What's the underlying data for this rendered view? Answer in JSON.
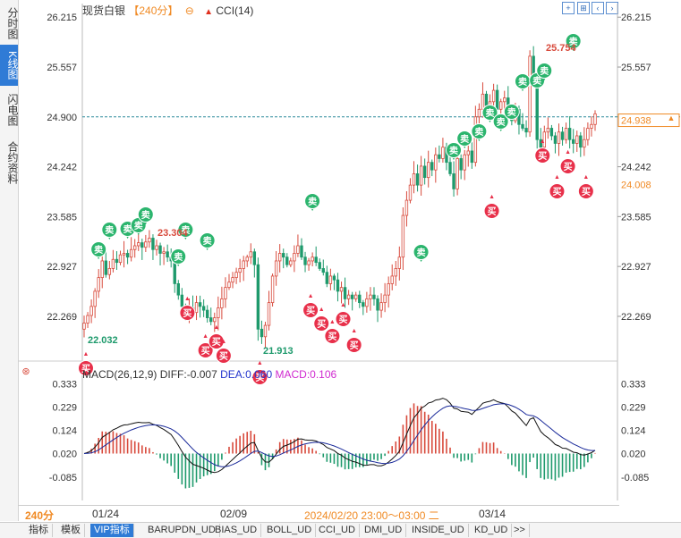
{
  "sidebar": {
    "tabs": [
      "分时图",
      "K线图",
      "闪电图",
      "合约资料"
    ],
    "active": 1
  },
  "header": {
    "title": "现货白银",
    "period": "【240分】",
    "indicator": "CCI(14)"
  },
  "toolbar_icons": [
    "zoom-out-icon",
    "zoom-in-icon",
    "scroll-left-icon",
    "scroll-right-icon",
    "zoom-reset-icon",
    "crosshair-icon"
  ],
  "price_labels": {
    "last": "24.938",
    "cursor": "24.008",
    "covered": "24.900"
  },
  "markers": {
    "buy": "买",
    "sell": "卖"
  },
  "macd_header": {
    "label": "MACD(26,12,9)",
    "diff": "DIFF:-0.007",
    "dea": "DEA:0.060",
    "macd": "MACD:0.106"
  },
  "bottom_axis": {
    "period": "240分",
    "date1": "01/24",
    "date2": "02/09",
    "cursor_time": "2024/02/20 23:00～03:00 二",
    "date3": "03/14"
  },
  "bottom_tabs": [
    "指标",
    "模板",
    "VIP指标",
    "BARUPDN_UD",
    "BIAS_UD",
    "BOLL_UD",
    "CCI_UD",
    "DMI_UD",
    "INSIDE_UD",
    "KD_UD",
    ">>"
  ],
  "active_bottom_tab": 2,
  "colors": {
    "up": "#d84a3c",
    "down": "#1e9a6c",
    "buy": "#e8304a",
    "sell": "#2cb56e",
    "diff": "#111111",
    "dea": "#1a2a9a",
    "dashed": "#2a8a9a",
    "accent": "#f08a24"
  },
  "chart_data": [
    {
      "type": "candlestick",
      "title": "现货白银",
      "y_ticks": [
        26.215,
        25.557,
        24.9,
        24.242,
        23.585,
        22.927,
        22.269
      ],
      "ylim": [
        21.75,
        26.3
      ],
      "x_labels": [
        "01/24",
        "02/09",
        "03/14"
      ],
      "annotations": [
        {
          "label": "22.032",
          "value": 22.032,
          "kind": "low"
        },
        {
          "label": "23.304",
          "value": 23.304,
          "kind": "high"
        },
        {
          "label": "21.913",
          "value": 21.913,
          "kind": "low"
        },
        {
          "label": "25.754",
          "value": 25.754,
          "kind": "high"
        }
      ],
      "reference_line": 24.9,
      "closes": [
        22.18,
        22.28,
        22.4,
        22.6,
        22.78,
        23.0,
        22.82,
        22.9,
        23.02,
        22.98,
        23.08,
        23.1,
        23.05,
        23.15,
        23.2,
        23.24,
        23.18,
        23.25,
        23.3,
        23.15,
        23.2,
        23.1,
        23.12,
        23.05,
        23.0,
        22.7,
        22.55,
        22.4,
        22.3,
        22.38,
        22.32,
        22.45,
        22.4,
        22.35,
        22.25,
        22.2,
        22.25,
        22.38,
        22.5,
        22.65,
        22.72,
        22.78,
        22.85,
        22.9,
        23.0,
        23.05,
        23.12,
        22.95,
        22.1,
        22.0,
        22.15,
        22.45,
        22.8,
        23.0,
        23.1,
        23.05,
        22.95,
        23.0,
        23.1,
        23.2,
        23.05,
        22.95,
        23.0,
        23.05,
        22.98,
        22.9,
        22.85,
        22.7,
        22.8,
        22.75,
        22.6,
        22.65,
        22.5,
        22.55,
        22.5,
        22.55,
        22.45,
        22.4,
        22.5,
        22.55,
        22.5,
        22.35,
        22.45,
        22.55,
        22.7,
        22.8,
        22.9,
        23.05,
        23.6,
        23.8,
        24.0,
        24.15,
        24.0,
        24.25,
        24.1,
        24.3,
        24.2,
        24.4,
        24.35,
        24.5,
        24.3,
        24.15,
        23.95,
        24.35,
        24.2,
        24.4,
        24.45,
        24.3,
        24.9,
        25.0,
        25.2,
        25.05,
        25.1,
        25.25,
        25.0,
        25.1,
        25.15,
        24.95,
        24.85,
        25.0,
        24.8,
        24.75,
        24.7,
        25.7,
        25.4,
        24.6,
        24.5,
        24.7,
        24.75,
        24.65,
        24.55,
        24.7,
        24.6,
        24.75,
        24.6,
        24.55,
        24.65,
        24.5,
        24.6,
        24.75,
        24.8,
        24.94
      ]
    },
    {
      "type": "macd",
      "title": "MACD(26,12,9)",
      "y_ticks": [
        0.333,
        0.229,
        0.124,
        0.02,
        -0.085
      ],
      "ylim": [
        -0.19,
        0.37
      ],
      "series": [
        {
          "name": "DIFF",
          "last": -0.007
        },
        {
          "name": "DEA",
          "last": 0.06
        },
        {
          "name": "MACD",
          "last": 0.106
        }
      ]
    }
  ]
}
